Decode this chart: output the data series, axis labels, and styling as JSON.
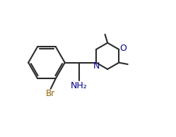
{
  "background_color": "#ffffff",
  "line_color": "#2b2b2b",
  "br_color": "#8B6000",
  "n_color": "#00008B",
  "o_color": "#00008B",
  "nh2_color": "#00008B",
  "line_width": 1.5,
  "figsize": [
    2.49,
    1.94
  ],
  "dpi": 100,
  "xlim": [
    0,
    10
  ],
  "ylim": [
    0,
    8
  ]
}
